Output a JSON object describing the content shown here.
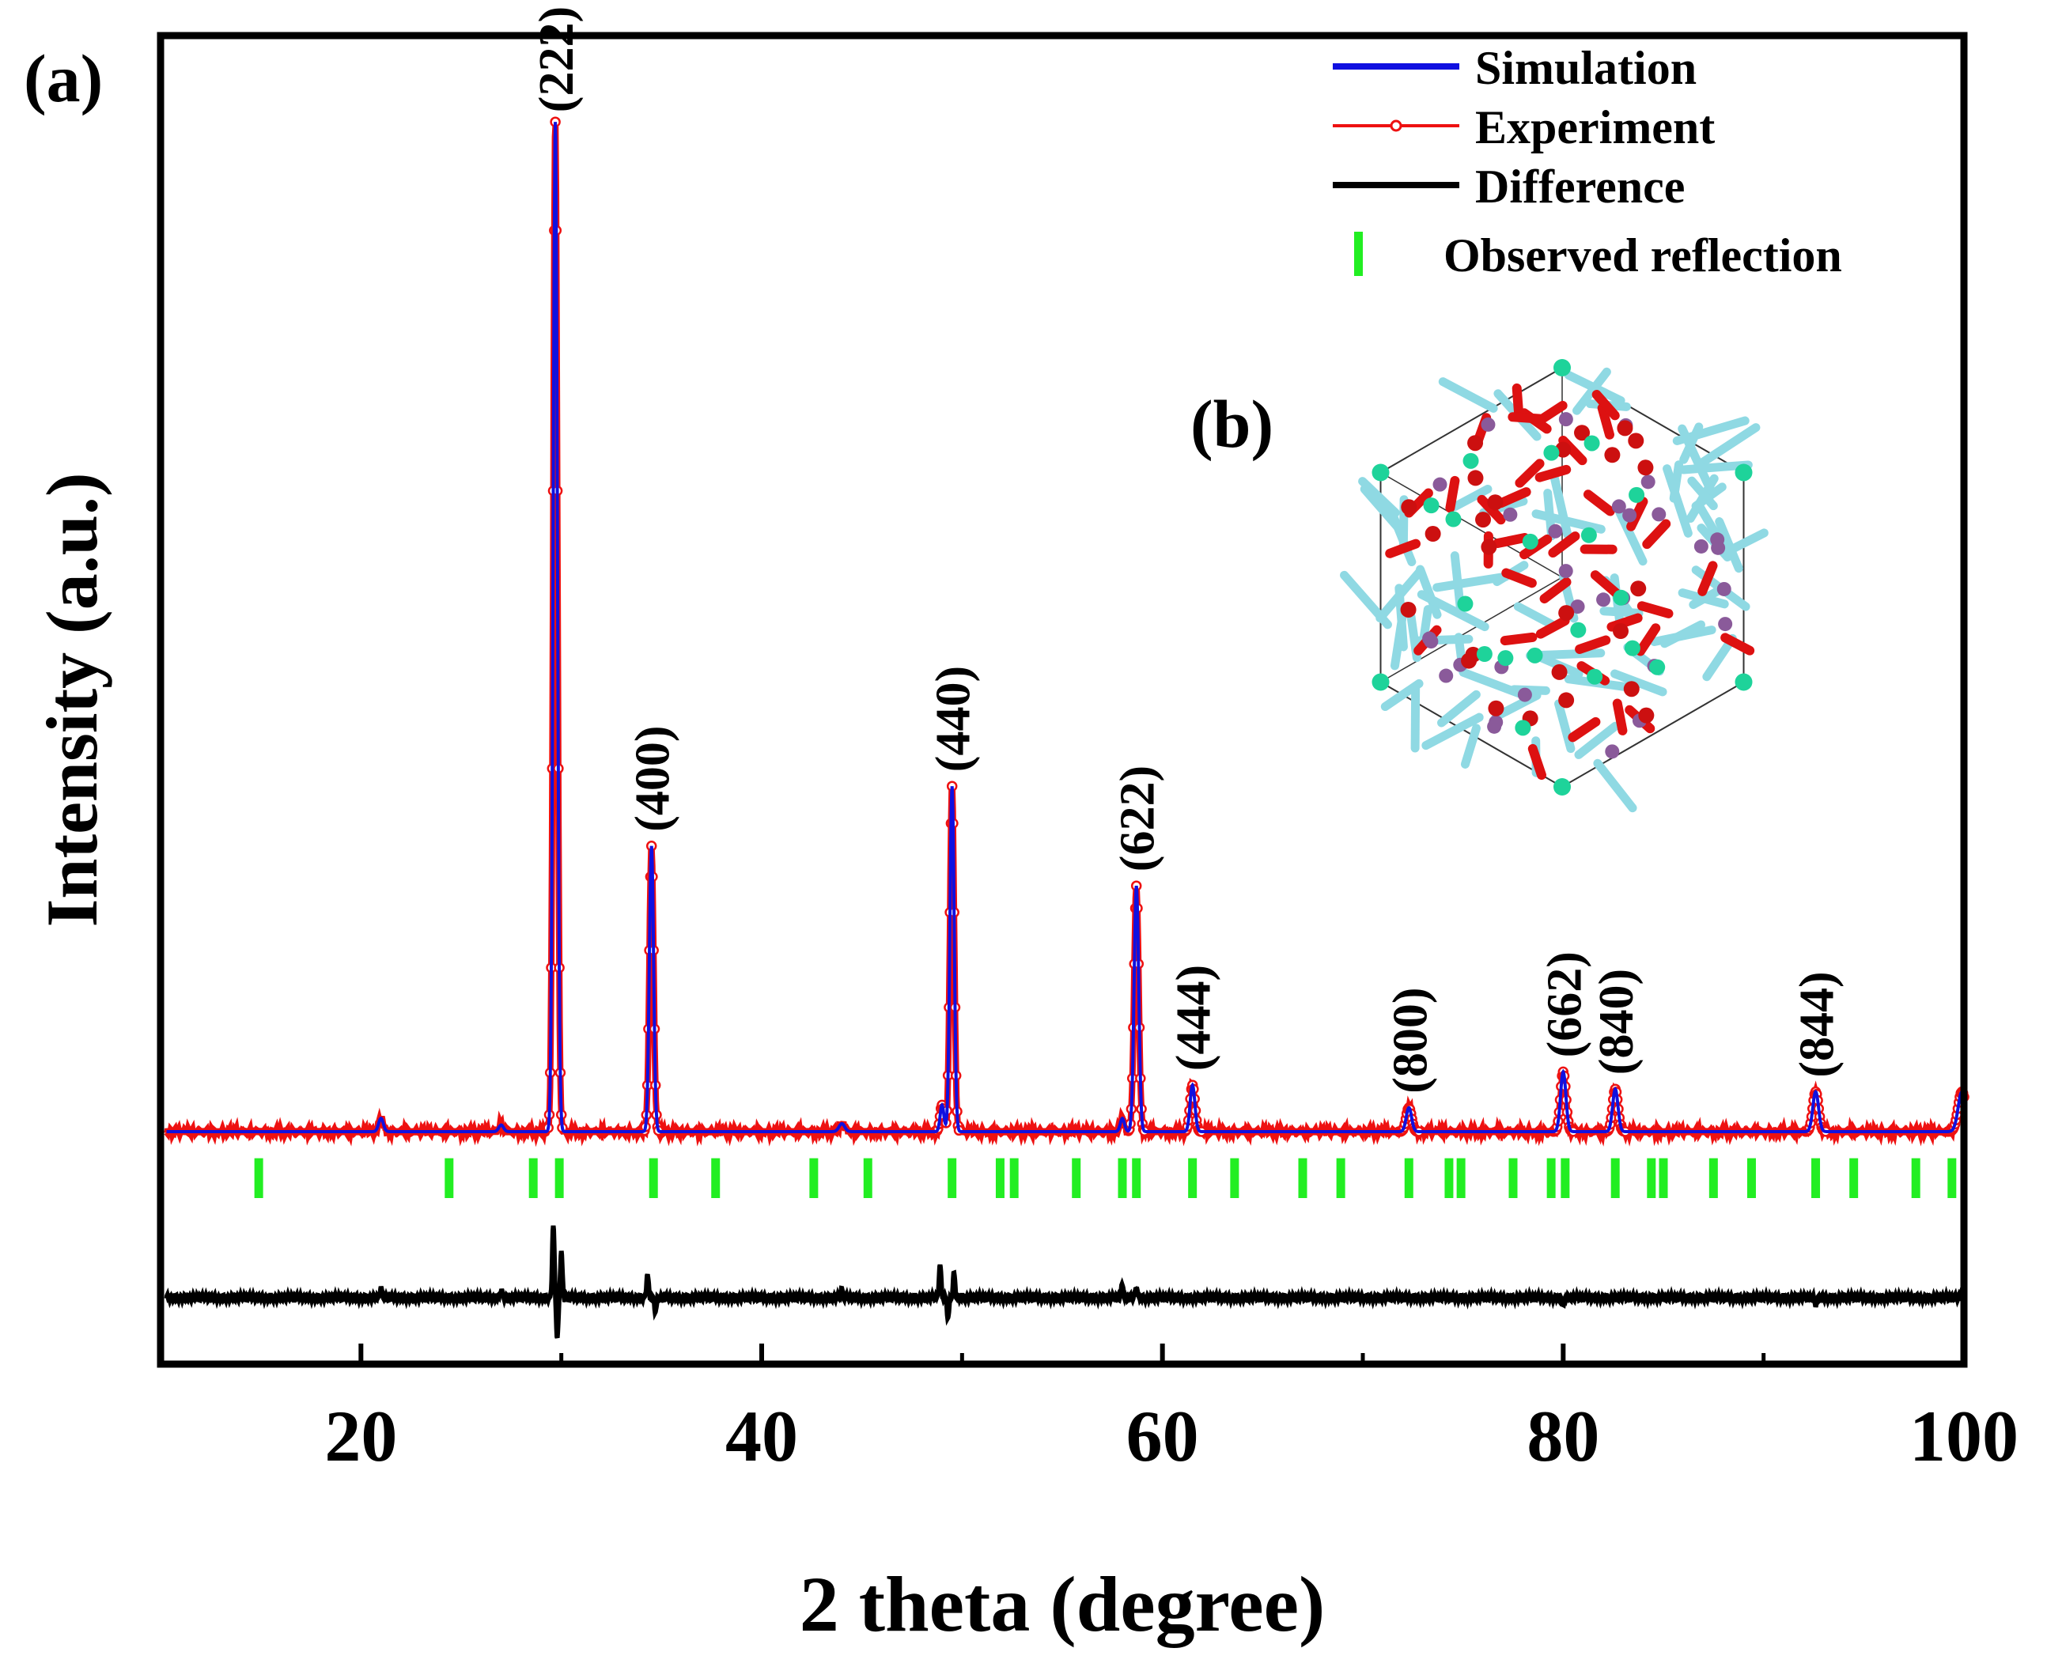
{
  "chart_data": {
    "type": "line",
    "panel_label": "(a)",
    "inset_label": "(b)",
    "xlabel": "2 theta (degree)",
    "ylabel": "Intensity (a.u.)",
    "xlim": [
      10,
      100
    ],
    "ylim": [
      0,
      1
    ],
    "x_ticks": [
      20,
      40,
      60,
      80,
      100
    ],
    "x_tick_labels": [
      "20",
      "40",
      "60",
      "80",
      "100"
    ],
    "x_minor_ticks": [
      30,
      50,
      70,
      90
    ],
    "legend": [
      {
        "name": "Simulation",
        "color": "#1010e0",
        "style": "line"
      },
      {
        "name": "Experiment",
        "color": "#ee1111",
        "style": "line-marker"
      },
      {
        "name": "Difference",
        "color": "#000000",
        "style": "line"
      },
      {
        "name": "Observed reflection",
        "color": "#22ee22",
        "style": "bar"
      }
    ],
    "baseline": 0.175,
    "difference_baseline": 0.05,
    "peaks": [
      {
        "x": 21.0,
        "height": 0.01,
        "width": 0.25,
        "label": ""
      },
      {
        "x": 27.0,
        "height": 0.005,
        "width": 0.25,
        "label": ""
      },
      {
        "x": 29.7,
        "height": 0.76,
        "width": 0.22,
        "label": "(222)"
      },
      {
        "x": 34.5,
        "height": 0.215,
        "width": 0.22,
        "label": "(400)"
      },
      {
        "x": 44.0,
        "height": 0.006,
        "width": 0.3,
        "label": ""
      },
      {
        "x": 49.0,
        "height": 0.02,
        "width": 0.2,
        "label": ""
      },
      {
        "x": 49.5,
        "height": 0.26,
        "width": 0.22,
        "label": "(440)"
      },
      {
        "x": 58.0,
        "height": 0.01,
        "width": 0.22,
        "label": ""
      },
      {
        "x": 58.7,
        "height": 0.185,
        "width": 0.24,
        "label": "(622)"
      },
      {
        "x": 61.5,
        "height": 0.035,
        "width": 0.25,
        "label": "(444)"
      },
      {
        "x": 72.3,
        "height": 0.018,
        "width": 0.28,
        "label": "(800)"
      },
      {
        "x": 80.0,
        "height": 0.045,
        "width": 0.28,
        "label": "(662)"
      },
      {
        "x": 82.6,
        "height": 0.032,
        "width": 0.28,
        "label": "(840)"
      },
      {
        "x": 92.6,
        "height": 0.03,
        "width": 0.3,
        "label": "(844)"
      },
      {
        "x": 99.9,
        "height": 0.03,
        "width": 0.4,
        "label": ""
      }
    ],
    "reflections": [
      14.9,
      24.4,
      28.6,
      29.9,
      34.6,
      37.7,
      42.6,
      45.3,
      49.5,
      51.9,
      52.6,
      55.7,
      58.0,
      58.7,
      61.5,
      63.6,
      67.0,
      68.9,
      72.3,
      74.3,
      74.9,
      77.5,
      79.4,
      80.1,
      82.6,
      84.4,
      85.0,
      87.5,
      89.4,
      92.6,
      94.5,
      97.6,
      99.4
    ],
    "reflection_band": [
      0.125,
      0.155
    ],
    "difference_spikes": [
      {
        "x": 21.0,
        "amplitude": 0.008
      },
      {
        "x": 27.0,
        "amplitude": 0.006
      },
      {
        "x": 29.6,
        "amplitude": 0.055
      },
      {
        "x": 29.8,
        "amplitude": -0.03
      },
      {
        "x": 30.0,
        "amplitude": 0.035
      },
      {
        "x": 34.3,
        "amplitude": 0.018
      },
      {
        "x": 34.7,
        "amplitude": -0.01
      },
      {
        "x": 44.0,
        "amplitude": 0.006
      },
      {
        "x": 48.9,
        "amplitude": 0.025
      },
      {
        "x": 49.3,
        "amplitude": -0.015
      },
      {
        "x": 49.6,
        "amplitude": 0.018
      },
      {
        "x": 58.0,
        "amplitude": 0.01
      },
      {
        "x": 58.7,
        "amplitude": 0.008
      },
      {
        "x": 80.0,
        "amplitude": -0.006
      },
      {
        "x": 92.6,
        "amplitude": -0.005
      },
      {
        "x": 99.9,
        "amplitude": 0.005
      }
    ]
  }
}
